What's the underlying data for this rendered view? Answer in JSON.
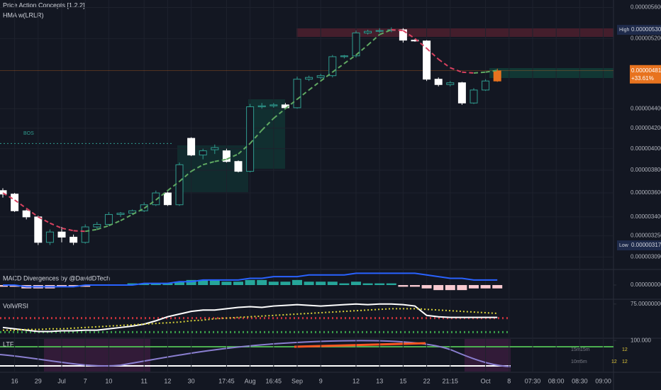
{
  "chart_data": [
    {
      "type": "candlestick",
      "title": "Price Action Concepts [1.2.2]",
      "subtitle": "HMA w(LRLR)",
      "categories": [
        null,
        "16",
        null,
        "29",
        null,
        "Jul",
        null,
        "7",
        null,
        "10",
        null,
        null,
        "11",
        null,
        "12",
        null,
        "30",
        null,
        null,
        "17:45",
        null,
        "Aug",
        null,
        "16:45",
        null,
        "Sep",
        null,
        "9",
        null,
        null,
        "12",
        null,
        "13",
        null,
        "15",
        null,
        "22",
        null,
        "21:15",
        null,
        null,
        "Oct",
        null,
        "8",
        null,
        "07:30",
        null,
        "08:00",
        null,
        "08:30",
        null,
        "09:00"
      ],
      "open": [
        3.62e-06,
        3.59e-06,
        3.45e-06,
        3.4e-06,
        3.2e-06,
        3.28e-06,
        3.24e-06,
        3.2e-06,
        3.32e-06,
        3.34e-06,
        3.42e-06,
        3.43e-06,
        3.45e-06,
        3.5e-06,
        3.6e-06,
        3.5e-06,
        4.1e-06,
        3.94e-06,
        3.99e-06,
        3.98e-06,
        3.88e-06,
        3.79e-06,
        4.42e-06,
        4.43e-06,
        4.44e-06,
        4.41e-06,
        4.72e-06,
        4.74e-06,
        4.76e-06,
        4.98e-06,
        4.99e-06,
        5.27e-06,
        5.29e-06,
        5.3e-06,
        5.31e-06,
        5.18e-06,
        5.17e-06,
        4.72e-06,
        4.66e-06,
        4.68e-06,
        4.46e-06,
        4.6e-06,
        4.7e-06,
        null,
        null,
        null,
        null,
        null,
        null,
        null,
        null,
        null
      ],
      "high": [
        3.64e-06,
        3.6e-06,
        3.46e-06,
        3.41e-06,
        3.3e-06,
        3.32e-06,
        3.26e-06,
        3.34e-06,
        3.36e-06,
        3.44e-06,
        3.44e-06,
        3.46e-06,
        3.52e-06,
        3.62e-06,
        3.61e-06,
        3.87e-06,
        4.11e-06,
        4e-06,
        4.04e-06,
        4e-06,
        3.89e-06,
        4.45e-06,
        4.46e-06,
        4.46e-06,
        4.46e-06,
        4.75e-06,
        4.76e-06,
        4.78e-06,
        5e-06,
        5e-06,
        5.3e-06,
        5.31e-06,
        5.33e-06,
        5.34e-06,
        5.33e-06,
        5.19e-06,
        5.18e-06,
        4.74e-06,
        4.7e-06,
        4.69e-06,
        4.62e-06,
        4.72e-06,
        4.84e-06,
        null,
        null,
        null,
        null,
        null,
        null,
        null,
        null,
        null
      ],
      "low": [
        3.56e-06,
        3.44e-06,
        3.38e-06,
        3.18e-06,
        3.18e-06,
        3.2e-06,
        3.18e-06,
        3.19e-06,
        3.3e-06,
        3.33e-06,
        3.4e-06,
        3.42e-06,
        3.44e-06,
        3.49e-06,
        3.49e-06,
        3.49e-06,
        3.93e-06,
        3.9e-06,
        3.95e-06,
        3.87e-06,
        3.78e-06,
        3.78e-06,
        4.4e-06,
        4.41e-06,
        4.4e-06,
        4.4e-06,
        4.7e-06,
        4.72e-06,
        4.74e-06,
        4.96e-06,
        4.97e-06,
        5.25e-06,
        5.27e-06,
        5.28e-06,
        5.15e-06,
        5.16e-06,
        4.7e-06,
        4.64e-06,
        4.64e-06,
        4.44e-06,
        4.45e-06,
        4.59e-06,
        4.69e-06,
        null,
        null,
        null,
        null,
        null,
        null,
        null,
        null,
        null
      ],
      "close": [
        3.59e-06,
        3.45e-06,
        3.4e-06,
        3.2e-06,
        3.28e-06,
        3.24e-06,
        3.2e-06,
        3.32e-06,
        3.34e-06,
        3.42e-06,
        3.43e-06,
        3.45e-06,
        3.5e-06,
        3.6e-06,
        3.5e-06,
        3.85e-06,
        3.94e-06,
        3.98e-06,
        4.01e-06,
        3.88e-06,
        3.79e-06,
        4.42e-06,
        4.43e-06,
        4.44e-06,
        4.41e-06,
        4.72e-06,
        4.74e-06,
        4.76e-06,
        4.98e-06,
        4.99e-06,
        5.27e-06,
        5.29e-06,
        5.3e-06,
        5.31e-06,
        5.18e-06,
        5.17e-06,
        4.72e-06,
        4.66e-06,
        4.68e-06,
        4.46e-06,
        4.6e-06,
        4.7e-06,
        4.816e-06,
        null,
        null,
        null,
        null,
        null,
        null,
        null,
        null,
        null
      ],
      "hma": [
        3.6e-06,
        3.54e-06,
        3.47e-06,
        3.4e-06,
        3.35e-06,
        3.31e-06,
        3.29e-06,
        3.285e-06,
        3.3e-06,
        3.33e-06,
        3.37e-06,
        3.42e-06,
        3.47e-06,
        3.54e-06,
        3.62e-06,
        3.7e-06,
        3.79e-06,
        3.85e-06,
        3.88e-06,
        3.9e-06,
        3.95e-06,
        4.05e-06,
        4.18e-06,
        4.3e-06,
        4.4e-06,
        4.5e-06,
        4.6e-06,
        4.7e-06,
        4.8e-06,
        4.9e-06,
        5e-06,
        5.12e-06,
        5.25e-06,
        5.31e-06,
        5.3e-06,
        5.2e-06,
        5.08e-06,
        4.95e-06,
        4.85e-06,
        4.8e-06,
        4.79e-06,
        4.8e-06,
        4.82e-06,
        null,
        null,
        null,
        null,
        null,
        null,
        null,
        null,
        null
      ],
      "colors": {
        "up": "#2f9c8f",
        "down": "#ffffff",
        "last": "#e8731f",
        "hma_up": "#5fa862",
        "hma_down": "#d8415f"
      },
      "log_scale": true,
      "grid": true,
      "ylim": [
        3e-06,
        5.7e-06
      ],
      "yticks": [
        {
          "value": 5.6e-06,
          "label": "0.000005600"
        },
        {
          "value": 5.2e-06,
          "label": "0.000005200"
        },
        {
          "value": 4.4e-06,
          "label": "0.000004400"
        },
        {
          "value": 4.2e-06,
          "label": "0.000004200"
        },
        {
          "value": 4e-06,
          "label": "0.000004000"
        },
        {
          "value": 3.8e-06,
          "label": "0.000003800"
        },
        {
          "value": 3.6e-06,
          "label": "0.000003600"
        },
        {
          "value": 3.4e-06,
          "label": "0.000003400"
        },
        {
          "value": 3.25e-06,
          "label": "0.000003250"
        },
        {
          "value": 3.09e-06,
          "label": "0.000003090"
        }
      ],
      "bos": {
        "label": "BOS",
        "value": 4.05e-06
      },
      "high_tag": {
        "name": "High",
        "value": 5.309e-06,
        "label": "0.000005309"
      },
      "low_tag": {
        "name": "Low",
        "value": 3.177e-06,
        "label": "0.000003177"
      },
      "last_tag": {
        "value": 4.816e-06,
        "label": "0.000004816",
        "change": "+33.61%"
      }
    },
    {
      "type": "bar",
      "title": "MACD Divergences by @DavidDTech",
      "values": [
        -1e-08,
        -1e-08,
        -2e-08,
        -2e-08,
        -2e-08,
        -1e-08,
        -1e-08,
        -1e-08,
        0,
        0,
        0,
        1e-08,
        1e-08,
        1e-08,
        1e-08,
        2e-08,
        3e-08,
        3e-08,
        3e-08,
        2e-08,
        2e-08,
        3e-08,
        3e-08,
        2e-08,
        2e-08,
        3e-08,
        2e-08,
        2e-08,
        2e-08,
        1e-08,
        2e-08,
        1e-08,
        1e-08,
        1e-08,
        -1e-08,
        -1e-08,
        -2e-08,
        -3e-08,
        -3e-08,
        -3e-08,
        -2e-08,
        -2e-08,
        -2e-08,
        null,
        null,
        null,
        null,
        null,
        null,
        null,
        null,
        null
      ],
      "colors": {
        "up": "#26a69a",
        "down": "#f7c9d0"
      },
      "series": [
        {
          "color": "#2962ff",
          "values": [
            0,
            0,
            -1e-08,
            -1e-08,
            -1e-08,
            -1e-08,
            -1e-08,
            0,
            0,
            0,
            0,
            0,
            1e-08,
            1e-08,
            1e-08,
            2e-08,
            2e-08,
            3e-08,
            3e-08,
            3e-08,
            3e-08,
            4e-08,
            4e-08,
            5e-08,
            5e-08,
            5e-08,
            6e-08,
            6e-08,
            6e-08,
            6e-08,
            7e-08,
            7e-08,
            7e-08,
            7e-08,
            7e-08,
            7e-08,
            6e-08,
            5e-08,
            4e-08,
            4e-08,
            3e-08,
            3e-08,
            3e-08,
            null,
            null,
            null,
            null,
            null,
            null,
            null,
            null,
            null
          ]
        }
      ],
      "ylim": [
        -8e-08,
        8e-08
      ],
      "yticks": [
        {
          "value": 0,
          "label": "0.000000000"
        }
      ]
    },
    {
      "type": "line",
      "title": "VolWRSI",
      "series": [
        {
          "color": "#ffffff",
          "values": [
            40,
            38,
            36,
            34,
            34,
            35,
            35,
            36,
            36,
            38,
            40,
            42,
            45,
            50,
            56,
            60,
            64,
            66,
            66,
            68,
            70,
            71,
            70,
            72,
            73,
            74,
            73,
            72,
            73,
            74,
            75,
            74,
            75,
            75,
            74,
            72,
            58,
            56,
            55,
            55,
            55,
            55,
            55,
            null,
            null,
            null,
            null,
            null,
            null,
            null,
            null,
            null
          ]
        },
        {
          "color": "#d8d23a",
          "values": [
            36,
            36,
            37,
            37,
            38,
            38,
            39,
            40,
            41,
            42,
            43,
            44,
            45,
            46,
            47,
            48,
            50,
            51,
            53,
            54,
            55,
            56,
            57,
            58,
            59,
            60,
            61,
            62,
            63,
            64,
            65,
            66,
            67,
            68,
            68,
            68,
            67,
            66,
            65,
            64,
            63,
            62,
            61,
            null,
            null,
            null,
            null,
            null,
            null,
            null,
            null,
            null
          ]
        }
      ],
      "levels": [
        {
          "value": 54,
          "color": "#c8323c"
        },
        {
          "value": 33,
          "color": "#3a9e4a"
        }
      ],
      "ylim": [
        25,
        80
      ],
      "yticks": [
        {
          "value": 75,
          "label": "75.000000000"
        }
      ]
    },
    {
      "type": "panel",
      "title": "LTF",
      "ylim": [
        0,
        105
      ],
      "yticks": [
        {
          "value": 100,
          "label": "100.000"
        }
      ],
      "table": [
        [
          "15m",
          "15m",
          "12"
        ],
        [
          "10m",
          "5m",
          "12",
          "12"
        ]
      ]
    }
  ]
}
